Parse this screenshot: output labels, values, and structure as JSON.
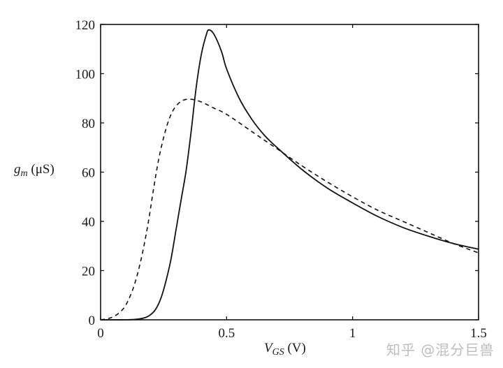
{
  "chart_data": {
    "type": "line",
    "title": "",
    "xlabel": "V_GS (V)",
    "ylabel": "g_m (μS)",
    "xlim": [
      0,
      1.5
    ],
    "ylim": [
      0,
      120
    ],
    "xticks": [
      0,
      0.5,
      1,
      1.5
    ],
    "xtick_labels": [
      "0",
      "0.5",
      "1",
      "1.5"
    ],
    "yticks": [
      0,
      20,
      40,
      60,
      80,
      100,
      120
    ],
    "ytick_labels": [
      "0",
      "20",
      "40",
      "60",
      "80",
      "100",
      "120"
    ],
    "grid": false,
    "legend": null,
    "series": [
      {
        "name": "solid",
        "style": "solid",
        "x": [
          0.0,
          0.1,
          0.15,
          0.18,
          0.2,
          0.22,
          0.24,
          0.26,
          0.28,
          0.3,
          0.32,
          0.34,
          0.36,
          0.38,
          0.4,
          0.42,
          0.43,
          0.45,
          0.48,
          0.5,
          0.55,
          0.6,
          0.65,
          0.7,
          0.8,
          0.9,
          1.0,
          1.1,
          1.2,
          1.3,
          1.4,
          1.5
        ],
        "y": [
          0.0,
          0.0,
          0.3,
          1.0,
          2.2,
          4.5,
          9.0,
          16.0,
          25.0,
          37.0,
          49.0,
          61.0,
          77.0,
          95.0,
          108.0,
          116.0,
          117.8,
          116.0,
          109.0,
          102.0,
          90.0,
          81.5,
          75.0,
          70.0,
          61.0,
          53.5,
          47.5,
          42.0,
          37.5,
          34.0,
          31.0,
          28.7
        ]
      },
      {
        "name": "dashed",
        "style": "dashed",
        "x": [
          0.0,
          0.03,
          0.06,
          0.09,
          0.11,
          0.13,
          0.15,
          0.17,
          0.19,
          0.21,
          0.23,
          0.25,
          0.27,
          0.29,
          0.31,
          0.33,
          0.36,
          0.4,
          0.45,
          0.5,
          0.6,
          0.7,
          0.8,
          0.9,
          1.0,
          1.1,
          1.2,
          1.3,
          1.4,
          1.5
        ],
        "y": [
          0.0,
          0.5,
          1.8,
          4.5,
          8.0,
          13.0,
          20.0,
          29.0,
          40.0,
          53.0,
          65.0,
          74.0,
          81.0,
          85.5,
          88.0,
          89.3,
          89.6,
          88.5,
          86.0,
          83.5,
          76.5,
          69.5,
          62.5,
          56.0,
          50.0,
          44.5,
          40.0,
          35.5,
          31.0,
          27.2
        ]
      }
    ]
  },
  "axes": {
    "xlabel_main": "V",
    "xlabel_sub": "GS",
    "xlabel_unit": " (V)",
    "ylabel_main": "g",
    "ylabel_sub": "m",
    "ylabel_unit": " (μS)"
  },
  "watermark": "知乎 @混分巨兽",
  "colors": {
    "line": "#111111",
    "axis": "#111111",
    "watermark": "#bdbdbd"
  }
}
